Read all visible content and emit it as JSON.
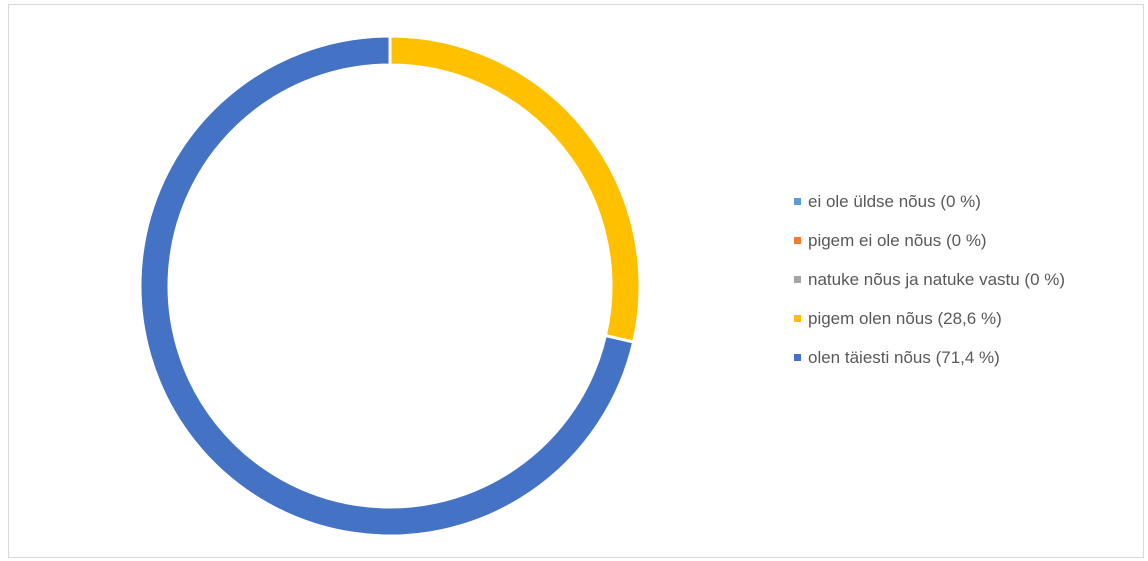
{
  "chart_data": {
    "type": "pie",
    "subtype": "doughnut",
    "title": "",
    "legend_position": "right",
    "slices": [
      {
        "label": "ei ole üldse nõus (0 %)",
        "value": 0,
        "color": "#5B9BD5"
      },
      {
        "label": "pigem ei ole nõus (0 %)",
        "value": 0,
        "color": "#ED7D31"
      },
      {
        "label": "natuke nõus ja natuke vastu (0 %)",
        "value": 0,
        "color": "#A5A5A5"
      },
      {
        "label": "pigem olen nõus (28,6 %)",
        "value": 28.6,
        "color": "#FFC000"
      },
      {
        "label": "olen täiesti nõus (71,4 %)",
        "value": 71.4,
        "color": "#4472C4"
      }
    ]
  }
}
